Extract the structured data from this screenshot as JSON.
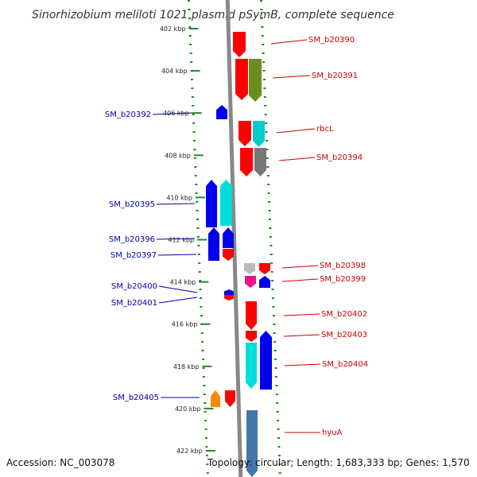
{
  "title": "Sinorhizobium meliloti 1021 plasmid pSymB, complete sequence",
  "footer": {
    "accession": "Accession: NC_003078",
    "summary": "Topology: circular; Length: 1,683,333 bp; Genes: 1,570"
  },
  "colors": {
    "left_label": "#0000aa",
    "right_label": "#cc0000",
    "backbone": "#888888",
    "tick_dots": "#228822"
  },
  "ticks": [
    {
      "kbp": 402,
      "label": "402 kbp"
    },
    {
      "kbp": 404,
      "label": "404 kbp"
    },
    {
      "kbp": 406,
      "label": "406 kbp"
    },
    {
      "kbp": 408,
      "label": "408 kbp"
    },
    {
      "kbp": 410,
      "label": "410 kbp"
    },
    {
      "kbp": 412,
      "label": "412 kbp"
    },
    {
      "kbp": 414,
      "label": "414 kbp"
    },
    {
      "kbp": 416,
      "label": "416 kbp"
    },
    {
      "kbp": 418,
      "label": "418 kbp"
    },
    {
      "kbp": 420,
      "label": "420 kbp"
    },
    {
      "kbp": 422,
      "label": "422 kbp"
    }
  ],
  "labels_left": [
    "SM_b20392",
    "SM_b20395",
    "SM_b20396",
    "SM_b20397",
    "SM_b20400",
    "SM_b20401",
    "SM_b20405"
  ],
  "labels_right": [
    "SM_b20390",
    "SM_b20391",
    "rbcL",
    "SM_b20394",
    "SM_b20398",
    "SM_b20399",
    "SM_b20402",
    "SM_b20403",
    "SM_b20404",
    "hyuA"
  ],
  "features": [
    {
      "name": "SM_b20390",
      "strand": "+",
      "color": "#ff0000"
    },
    {
      "name": "SM_b20391",
      "strand": "+",
      "color": "#ff0000"
    },
    {
      "name": "SM_b20391-cog",
      "strand": "+",
      "color": "#6b8e23"
    },
    {
      "name": "SM_b20392",
      "strand": "-",
      "color": "#0000ee"
    },
    {
      "name": "rbcL",
      "strand": "+",
      "color": "#ff0000"
    },
    {
      "name": "rbcL-cog",
      "strand": "+",
      "color": "#00cccc"
    },
    {
      "name": "SM_b20394",
      "strand": "+",
      "color": "#ff0000"
    },
    {
      "name": "SM_b20394-cog",
      "strand": "+",
      "color": "#777777"
    },
    {
      "name": "SM_b20395",
      "strand": "-",
      "color": "#0000ee"
    },
    {
      "name": "SM_b20395-cog",
      "strand": "-",
      "color": "#00dddd"
    },
    {
      "name": "SM_b20396",
      "strand": "-",
      "color": "#0000ee"
    },
    {
      "name": "SM_b20397",
      "strand": "-",
      "color": "#0000ee"
    },
    {
      "name": "SM_b20398",
      "strand": "+",
      "color": "#ff0000"
    },
    {
      "name": "SM_b20398-cog",
      "strand": "+",
      "color": "#bbbbbb"
    },
    {
      "name": "SM_b20399",
      "strand": "+",
      "color": "#ff0000"
    },
    {
      "name": "SM_b20399-cog",
      "strand": "+",
      "color": "#ee1188"
    },
    {
      "name": "SM_b20400",
      "strand": "-",
      "color": "#0000ee"
    },
    {
      "name": "SM_b20401",
      "strand": "-",
      "color": "#0000ee"
    },
    {
      "name": "SM_b20402",
      "strand": "+",
      "color": "#ff0000"
    },
    {
      "name": "SM_b20403",
      "strand": "+",
      "color": "#ff0000"
    },
    {
      "name": "SM_b20404",
      "strand": "+",
      "color": "#ff0000"
    },
    {
      "name": "SM_b20404-cog",
      "strand": "+",
      "color": "#00dddd"
    },
    {
      "name": "SM_b20405",
      "strand": "-",
      "color": "#0000ee"
    },
    {
      "name": "SM_b20405-cog",
      "strand": "-",
      "color": "#ff8800"
    },
    {
      "name": "hyuA",
      "strand": "+",
      "color": "#ff0000"
    },
    {
      "name": "hyuA-cog",
      "strand": "+",
      "color": "#4477aa"
    }
  ]
}
